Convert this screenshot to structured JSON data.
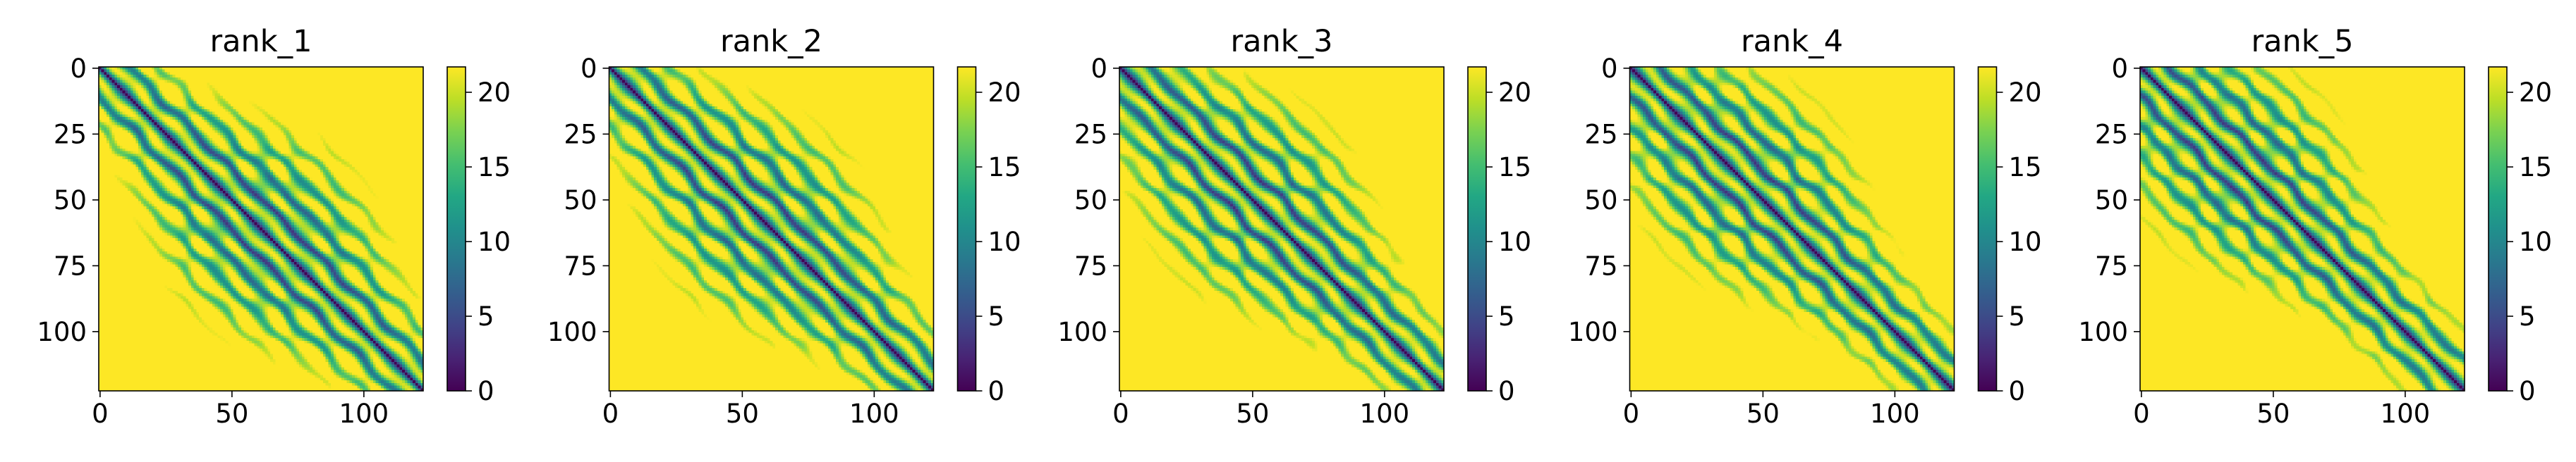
{
  "chart_data": [
    {
      "type": "heatmap",
      "title": "rank_1",
      "xlabel": "",
      "ylabel": "",
      "n": 123,
      "x_ticks": [
        "0",
        "50",
        "100"
      ],
      "y_ticks": [
        "0",
        "25",
        "50",
        "75",
        "100"
      ],
      "colorbar": {
        "min": 0,
        "max": 21.7,
        "ticks": [
          "0",
          "5",
          "10",
          "15",
          "20"
        ]
      }
    },
    {
      "type": "heatmap",
      "title": "rank_2",
      "xlabel": "",
      "ylabel": "",
      "n": 123,
      "x_ticks": [
        "0",
        "50",
        "100"
      ],
      "y_ticks": [
        "0",
        "25",
        "50",
        "75",
        "100"
      ],
      "colorbar": {
        "min": 0,
        "max": 21.7,
        "ticks": [
          "0",
          "5",
          "10",
          "15",
          "20"
        ]
      }
    },
    {
      "type": "heatmap",
      "title": "rank_3",
      "xlabel": "",
      "ylabel": "",
      "n": 123,
      "x_ticks": [
        "0",
        "50",
        "100"
      ],
      "y_ticks": [
        "0",
        "25",
        "50",
        "75",
        "100"
      ],
      "colorbar": {
        "min": 0,
        "max": 21.7,
        "ticks": [
          "0",
          "5",
          "10",
          "15",
          "20"
        ]
      }
    },
    {
      "type": "heatmap",
      "title": "rank_4",
      "xlabel": "",
      "ylabel": "",
      "n": 123,
      "x_ticks": [
        "0",
        "50",
        "100"
      ],
      "y_ticks": [
        "0",
        "25",
        "50",
        "75",
        "100"
      ],
      "colorbar": {
        "min": 0,
        "max": 21.7,
        "ticks": [
          "0",
          "5",
          "10",
          "15",
          "20"
        ]
      }
    },
    {
      "type": "heatmap",
      "title": "rank_5",
      "xlabel": "",
      "ylabel": "",
      "n": 123,
      "x_ticks": [
        "0",
        "50",
        "100"
      ],
      "y_ticks": [
        "0",
        "25",
        "50",
        "75",
        "100"
      ],
      "colorbar": {
        "min": 0,
        "max": 21.7,
        "ticks": [
          "0",
          "5",
          "10",
          "15",
          "20"
        ]
      }
    }
  ],
  "colormap": "viridis",
  "colors": {
    "viridis_0": "#440154",
    "viridis_25": "#3b528b",
    "viridis_50": "#21918c",
    "viridis_75": "#5ec962",
    "viridis_100": "#fde725"
  }
}
